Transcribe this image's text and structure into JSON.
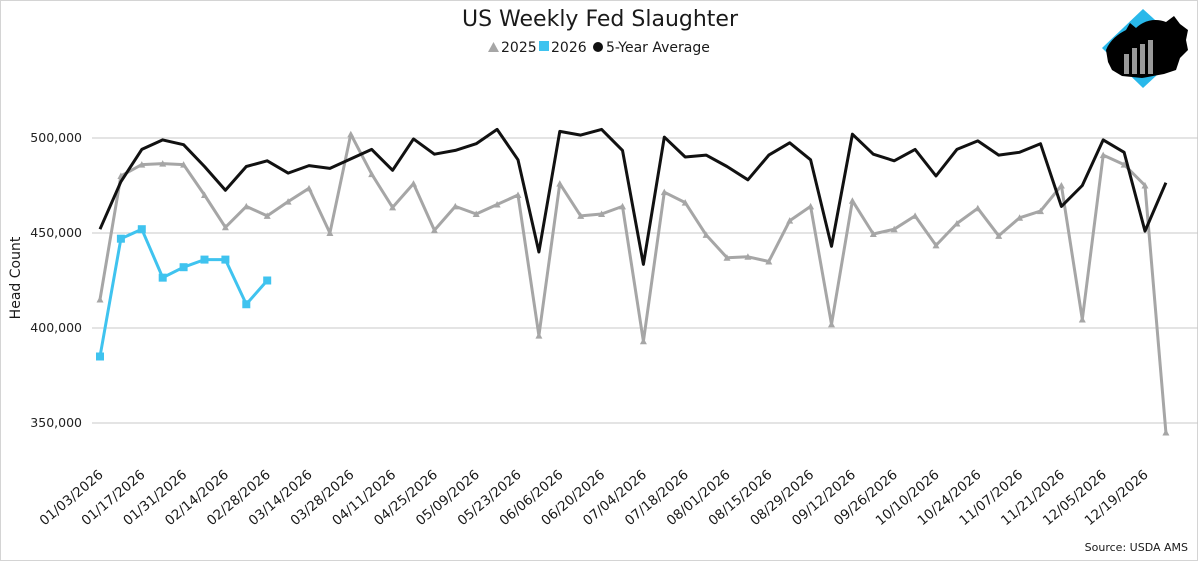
{
  "chart_data": {
    "type": "line",
    "title": "US Weekly Fed Slaughter",
    "ylabel": "Head Count",
    "xlabel": "",
    "ylim": [
      330000,
      520000
    ],
    "yticks": [
      350000,
      400000,
      450000,
      500000
    ],
    "ytick_labels": [
      "350,000",
      "400,000",
      "450,000",
      "500,000"
    ],
    "x_count": 53,
    "xtick_labels": [
      "01/03/2026",
      "01/17/2026",
      "01/31/2026",
      "02/14/2026",
      "02/28/2026",
      "03/14/2026",
      "03/28/2026",
      "04/11/2026",
      "04/25/2026",
      "05/09/2026",
      "05/23/2026",
      "06/06/2026",
      "06/20/2026",
      "07/04/2026",
      "07/18/2026",
      "08/01/2026",
      "08/15/2026",
      "08/29/2026",
      "09/12/2026",
      "09/26/2026",
      "10/10/2026",
      "10/24/2026",
      "11/07/2026",
      "11/21/2026",
      "12/05/2026",
      "12/19/2026"
    ],
    "xtick_step": 2,
    "grid": true,
    "legend_position": "top-center",
    "series": [
      {
        "name": "2025",
        "color": "#a6a6a6",
        "marker": "triangle",
        "values": [
          415000,
          480000,
          486000,
          486500,
          486000,
          470000,
          453000,
          464000,
          459000,
          466500,
          473500,
          450000,
          502000,
          481000,
          463500,
          476000,
          451500,
          464000,
          460000,
          465000,
          470000,
          396000,
          476000,
          459000,
          460000,
          464000,
          393000,
          471500,
          466000,
          449000,
          437000,
          437500,
          435000,
          456500,
          464000,
          402000,
          467000,
          449500,
          452000,
          459000,
          443500,
          455000,
          463000,
          448500,
          458000,
          461500,
          475000,
          404500,
          491000,
          486000,
          475000,
          345000
        ]
      },
      {
        "name": "2026",
        "color": "#3fc3ef",
        "marker": "square",
        "values": [
          385000,
          447000,
          452000,
          426500,
          432000,
          436000,
          436000,
          412500,
          425000
        ]
      },
      {
        "name": "5-Year Average",
        "color": "#111111",
        "marker": "circle",
        "values": [
          452000,
          477000,
          494000,
          499000,
          496500,
          485000,
          472500,
          485000,
          488000,
          481500,
          485500,
          484000,
          489000,
          494000,
          483000,
          499500,
          491500,
          493500,
          497000,
          504500,
          488500,
          440000,
          503500,
          501500,
          504500,
          493500,
          433500,
          500500,
          490000,
          491000,
          485000,
          478000,
          491000,
          497500,
          488500,
          443000,
          502000,
          491500,
          488000,
          494000,
          480000,
          494000,
          498500,
          491000,
          492500,
          497000,
          464000,
          475000,
          499000,
          492500,
          451000,
          476500
        ]
      }
    ],
    "source": "Source: USDA AMS"
  },
  "logo": {
    "name": "cattle-silhouette-logo",
    "colors": [
      "#29b8ea",
      "#000000",
      "#9a9a9a"
    ]
  }
}
